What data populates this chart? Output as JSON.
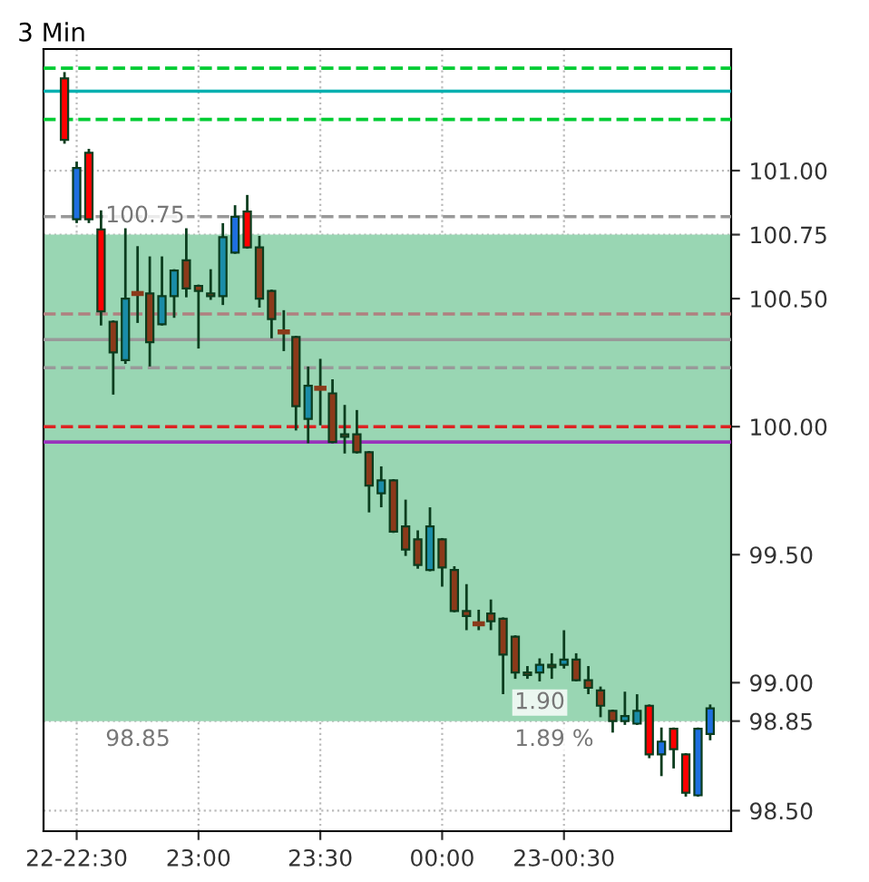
{
  "chart_data": {
    "type": "candlestick",
    "title": "3 Min",
    "x": [
      22.45,
      22.5,
      22.55,
      22.6,
      22.65,
      22.7,
      22.75,
      22.8,
      22.85,
      22.9,
      22.95,
      23.0,
      23.05,
      23.1,
      23.15,
      23.2,
      23.25,
      23.3,
      23.35,
      23.4,
      23.45,
      23.5,
      23.55,
      23.6,
      23.65,
      23.7,
      23.75,
      23.8,
      23.85,
      23.9,
      23.95,
      24.0,
      24.05,
      24.1,
      24.15,
      24.2,
      24.25,
      24.3,
      24.35,
      24.4,
      24.45,
      24.5,
      24.55,
      24.6,
      24.65,
      24.7,
      24.75,
      24.8,
      24.85,
      24.9,
      24.95,
      25.0,
      25.05,
      25.1
    ],
    "ohlc": [
      [
        101.36,
        101.38,
        101.11,
        101.12
      ],
      [
        100.81,
        101.03,
        100.8,
        101.01
      ],
      [
        101.07,
        101.08,
        100.8,
        100.81
      ],
      [
        100.77,
        100.84,
        100.4,
        100.45
      ],
      [
        100.41,
        100.41,
        100.13,
        100.29
      ],
      [
        100.26,
        100.77,
        100.25,
        100.5
      ],
      [
        100.52,
        100.7,
        100.41,
        100.52
      ],
      [
        100.52,
        100.66,
        100.24,
        100.33
      ],
      [
        100.4,
        100.66,
        100.4,
        100.51
      ],
      [
        100.51,
        100.61,
        100.43,
        100.61
      ],
      [
        100.65,
        100.77,
        100.51,
        100.54
      ],
      [
        100.55,
        100.55,
        100.31,
        100.53
      ],
      [
        100.52,
        100.61,
        100.5,
        100.51
      ],
      [
        100.51,
        100.79,
        100.48,
        100.74
      ],
      [
        100.68,
        100.86,
        100.68,
        100.82
      ],
      [
        100.84,
        100.9,
        100.7,
        100.7
      ],
      [
        100.7,
        100.74,
        100.47,
        100.5
      ],
      [
        100.53,
        100.53,
        100.35,
        100.42
      ],
      [
        100.37,
        100.45,
        100.3,
        100.37
      ],
      [
        100.35,
        100.35,
        99.99,
        100.08
      ],
      [
        100.03,
        100.23,
        99.94,
        100.16
      ],
      [
        100.15,
        100.26,
        100.01,
        100.15
      ],
      [
        100.13,
        100.18,
        99.94,
        99.94
      ],
      [
        99.97,
        100.08,
        99.9,
        99.96
      ],
      [
        99.97,
        100.06,
        99.9,
        99.9
      ],
      [
        99.9,
        99.9,
        99.67,
        99.77
      ],
      [
        99.74,
        99.84,
        99.69,
        99.79
      ],
      [
        99.79,
        99.79,
        99.59,
        99.59
      ],
      [
        99.61,
        99.71,
        99.5,
        99.52
      ],
      [
        99.56,
        99.59,
        99.45,
        99.46
      ],
      [
        99.44,
        99.68,
        99.44,
        99.61
      ],
      [
        99.56,
        99.56,
        99.38,
        99.45
      ],
      [
        99.44,
        99.45,
        99.28,
        99.28
      ],
      [
        99.28,
        99.38,
        99.21,
        99.26
      ],
      [
        99.23,
        99.28,
        99.21,
        99.23
      ],
      [
        99.27,
        99.32,
        99.21,
        99.24
      ],
      [
        99.25,
        99.25,
        98.96,
        99.11
      ],
      [
        99.18,
        99.18,
        99.02,
        99.04
      ],
      [
        99.04,
        99.06,
        99.02,
        99.03
      ],
      [
        99.04,
        99.09,
        99.01,
        99.07
      ],
      [
        99.07,
        99.11,
        99.02,
        99.06
      ],
      [
        99.07,
        99.2,
        99.06,
        99.09
      ],
      [
        99.09,
        99.11,
        99.01,
        99.01
      ],
      [
        99.01,
        99.06,
        98.96,
        98.98
      ],
      [
        98.97,
        98.98,
        98.87,
        98.91
      ],
      [
        98.89,
        98.89,
        98.81,
        98.85
      ],
      [
        98.85,
        98.96,
        98.84,
        98.87
      ],
      [
        98.84,
        98.95,
        98.84,
        98.89
      ],
      [
        98.91,
        98.91,
        98.71,
        98.72
      ],
      [
        98.72,
        98.82,
        98.64,
        98.77
      ],
      [
        98.82,
        98.82,
        98.67,
        98.74
      ],
      [
        98.72,
        98.72,
        98.56,
        98.57
      ],
      [
        98.56,
        98.82,
        98.56,
        98.82
      ],
      [
        98.8,
        98.91,
        98.78,
        98.9
      ]
    ],
    "colors": [
      "#ff0000",
      "#1e6fe0",
      "#ff0000",
      "#ff0000",
      "#8b3a1a",
      "#1a8ca8",
      "#8b3a1a",
      "#8b3a1a",
      "#1a8ca8",
      "#1a8ca8",
      "#8b3a1a",
      "#8b3a1a",
      "#8b3a1a",
      "#1a8ca8",
      "#1e6fe0",
      "#ff0000",
      "#8b3a1a",
      "#8b3a1a",
      "#8b3a1a",
      "#8b3a1a",
      "#1a8ca8",
      "#8b3a1a",
      "#8b3a1a",
      "#8b3a1a",
      "#8b3a1a",
      "#8b3a1a",
      "#1a8ca8",
      "#8b3a1a",
      "#8b3a1a",
      "#8b3a1a",
      "#1a8ca8",
      "#8b3a1a",
      "#8b3a1a",
      "#8b3a1a",
      "#8b3a1a",
      "#8b3a1a",
      "#8b3a1a",
      "#8b3a1a",
      "#8b3a1a",
      "#1a8ca8",
      "#8b3a1a",
      "#1a8ca8",
      "#8b3a1a",
      "#8b3a1a",
      "#8b3a1a",
      "#8b3a1a",
      "#1a8ca8",
      "#1a8ca8",
      "#ff0000",
      "#1e6fe0",
      "#ff0000",
      "#ff0000",
      "#1e6fe0",
      "#1e6fe0"
    ],
    "xlim": [
      22.364,
      25.186
    ],
    "ylim": [
      98.42,
      101.475
    ],
    "xticks": [
      {
        "value": 22.5,
        "label": "22-22:30"
      },
      {
        "value": 23.0,
        "label": "23:00"
      },
      {
        "value": 23.5,
        "label": "23:30"
      },
      {
        "value": 24.0,
        "label": "00:00"
      },
      {
        "value": 24.5,
        "label": "23-00:30"
      }
    ],
    "yticks": [
      {
        "value": 98.5,
        "label": "98.50"
      },
      {
        "value": 98.85,
        "label": "98.85"
      },
      {
        "value": 99.0,
        "label": "99.00"
      },
      {
        "value": 99.5,
        "label": "99.50"
      },
      {
        "value": 100.0,
        "label": "100.00"
      },
      {
        "value": 100.5,
        "label": "100.50"
      },
      {
        "value": 100.75,
        "label": "100.75"
      },
      {
        "value": 101.0,
        "label": "101.00"
      }
    ],
    "grid": true,
    "bands": [
      {
        "axis": "y",
        "from": 98.85,
        "to": 100.75,
        "color": "#99d6b3"
      }
    ],
    "ref_lines": [
      {
        "axis": "y",
        "value": 101.4,
        "color": "#00cc33",
        "line_style": "dashed"
      },
      {
        "axis": "y",
        "value": 101.31,
        "color": "#00b0b0",
        "line_style": "solid"
      },
      {
        "axis": "y",
        "value": 101.2,
        "color": "#00cc33",
        "line_style": "dashed"
      },
      {
        "axis": "y",
        "value": 100.82,
        "color": "#999999",
        "line_style": "dashed"
      },
      {
        "axis": "y",
        "value": 100.44,
        "color": "#b08080",
        "line_style": "dashed"
      },
      {
        "axis": "y",
        "value": 100.34,
        "color": "#999999",
        "line_style": "solid"
      },
      {
        "axis": "y",
        "value": 100.23,
        "color": "#999999",
        "line_style": "dashed"
      },
      {
        "axis": "y",
        "value": 100.0,
        "color": "#dd2222",
        "line_style": "dashed"
      },
      {
        "axis": "y",
        "value": 99.94,
        "color": "#9933bb",
        "line_style": "solid"
      }
    ],
    "annotations": [
      {
        "text": "100.75",
        "y": 100.75
      },
      {
        "text": "98.85",
        "y": 98.85
      },
      {
        "text": "1.90",
        "y": 98.85
      },
      {
        "text": "1.89 %",
        "y": 98.85
      }
    ]
  }
}
